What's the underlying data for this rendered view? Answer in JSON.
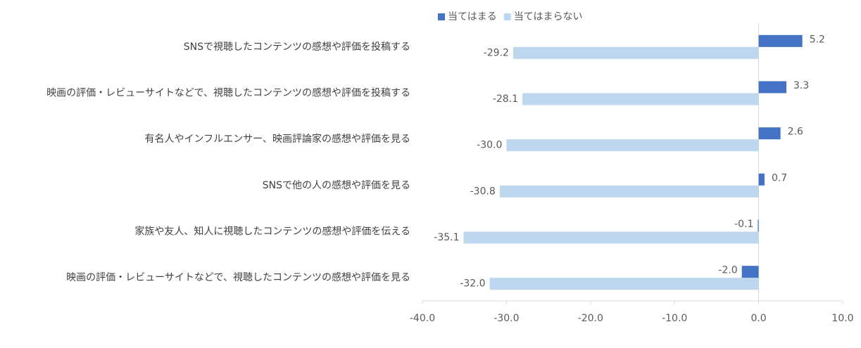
{
  "chart_data": {
    "type": "bar",
    "orientation": "horizontal",
    "categories": [
      "SNSで視聴したコンテンツの感想や評価を投稿する",
      "映画の評価・レビューサイトなどで、視聴したコンテンツの感想や評価を投稿する",
      "有名人やインフルエンサー、映画評論家の感想や評価を見る",
      "SNSで他の人の感想や評価を見る",
      "家族や友人、知人に視聴したコンテンツの感想や評価を伝える",
      "映画の評価・レビューサイトなどで、視聴したコンテンツの感想や評価を見る"
    ],
    "series": [
      {
        "name": "当てはまる",
        "color": "#4472c4",
        "values": [
          5.2,
          3.3,
          2.6,
          0.7,
          -0.1,
          -2.0
        ],
        "value_labels": [
          "5.2",
          "3.3",
          "2.6",
          "0.7",
          "-0.1",
          "-2.0"
        ]
      },
      {
        "name": "当てはまらない",
        "color": "#bdd7ee",
        "values": [
          -29.2,
          -28.1,
          -30.0,
          -30.8,
          -35.1,
          -32.0
        ],
        "value_labels": [
          "-29.2",
          "-28.1",
          "-30.0",
          "-30.8",
          "-35.1",
          "-32.0"
        ]
      }
    ],
    "xlim": [
      -40,
      10
    ],
    "xticks": [
      {
        "value": -40,
        "label": "-40.0"
      },
      {
        "value": -30,
        "label": "-30.0"
      },
      {
        "value": -20,
        "label": "-20.0"
      },
      {
        "value": -10,
        "label": "-10.0"
      },
      {
        "value": 0,
        "label": "0.0"
      },
      {
        "value": 10,
        "label": "10.0"
      }
    ],
    "legend": "top",
    "grid": false
  }
}
